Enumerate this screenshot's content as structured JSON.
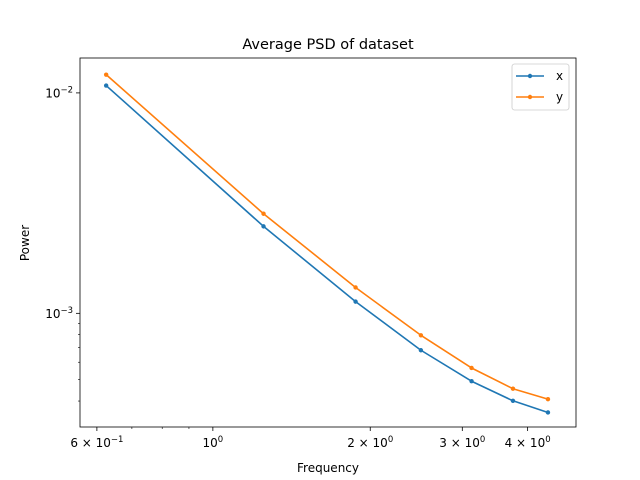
{
  "chart_data": {
    "type": "line",
    "title": "Average PSD of dataset",
    "xlabel": "Frequency",
    "ylabel": "Power",
    "xscale": "log",
    "yscale": "log",
    "xlim": [
      0.557,
      4.95
    ],
    "ylim": [
      0.000305,
      0.0144
    ],
    "grid": false,
    "legend_position": "top-right",
    "x_ticks_major": [
      {
        "value": 0.6,
        "base": "6 × 10",
        "exp": "−1"
      },
      {
        "value": 1.0,
        "base": "10",
        "exp": "0"
      },
      {
        "value": 2.0,
        "base": "2 × 10",
        "exp": "0"
      },
      {
        "value": 3.0,
        "base": "3 × 10",
        "exp": "0"
      },
      {
        "value": 4.0,
        "base": "4 × 10",
        "exp": "0"
      }
    ],
    "x_ticks_minor": [
      0.7,
      0.8,
      0.9
    ],
    "y_ticks_major": [
      {
        "value": 0.01,
        "base": "10",
        "exp": "−2"
      },
      {
        "value": 0.001,
        "base": "10",
        "exp": "−3"
      }
    ],
    "y_ticks_minor": [
      0.0004,
      0.0005,
      0.0006,
      0.0007,
      0.0008,
      0.0009
    ],
    "x": [
      0.625,
      1.25,
      1.875,
      2.5,
      3.125,
      3.75,
      4.375
    ],
    "series": [
      {
        "name": "x",
        "color": "#1f77b4",
        "values": [
          0.0108,
          0.00248,
          0.00113,
          0.00068,
          0.000492,
          0.000401,
          0.000355
        ]
      },
      {
        "name": "y",
        "color": "#ff7f0e",
        "values": [
          0.0121,
          0.00283,
          0.00131,
          0.000795,
          0.000565,
          0.000455,
          0.000408
        ]
      }
    ]
  }
}
